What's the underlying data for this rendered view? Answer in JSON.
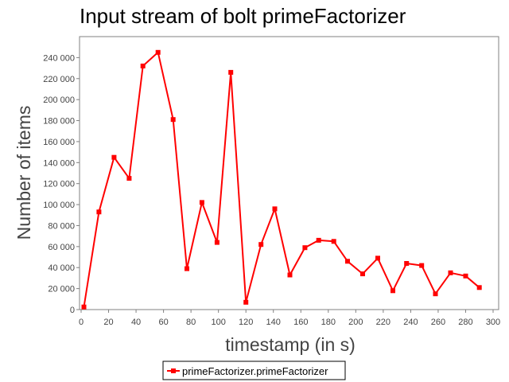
{
  "chart_data": {
    "type": "line",
    "title": "Input stream of bolt primeFactorizer",
    "xlabel": "timestamp (in s)",
    "ylabel": "Number of items",
    "xlim": [
      0,
      300
    ],
    "ylim": [
      0,
      260000
    ],
    "xticks": [
      0,
      20,
      40,
      60,
      80,
      100,
      120,
      140,
      160,
      180,
      200,
      220,
      240,
      260,
      280,
      300
    ],
    "xtick_labels": [
      "0",
      "20",
      "40",
      "60",
      "80",
      "100",
      "120",
      "140",
      "160",
      "180",
      "200",
      "220",
      "240",
      "260",
      "280",
      "300"
    ],
    "yticks": [
      0,
      20000,
      40000,
      60000,
      80000,
      100000,
      120000,
      140000,
      160000,
      180000,
      200000,
      220000,
      240000
    ],
    "ytick_labels": [
      "0",
      "20 000",
      "40 000",
      "60 000",
      "80 000",
      "100 000",
      "120 000",
      "140 000",
      "160 000",
      "180 000",
      "200 000",
      "220 000",
      "240 000"
    ],
    "grid": false,
    "legend_position": "bottom-center",
    "series": [
      {
        "name": "primeFactorizer.primeFactorizer",
        "color": "#ff0000",
        "marker": "square",
        "x": [
          2,
          13,
          24,
          35,
          45,
          56,
          67,
          77,
          88,
          99,
          109,
          120,
          131,
          141,
          152,
          163,
          173,
          184,
          194,
          205,
          216,
          227,
          237,
          248,
          258,
          269,
          280,
          290
        ],
        "y": [
          2500,
          93000,
          145000,
          125000,
          232000,
          245000,
          181000,
          39000,
          102000,
          64000,
          226000,
          7000,
          62000,
          96000,
          33000,
          59000,
          66000,
          65000,
          46000,
          34000,
          49000,
          18000,
          44000,
          42000,
          15000,
          35000,
          32000,
          21000
        ]
      }
    ]
  }
}
